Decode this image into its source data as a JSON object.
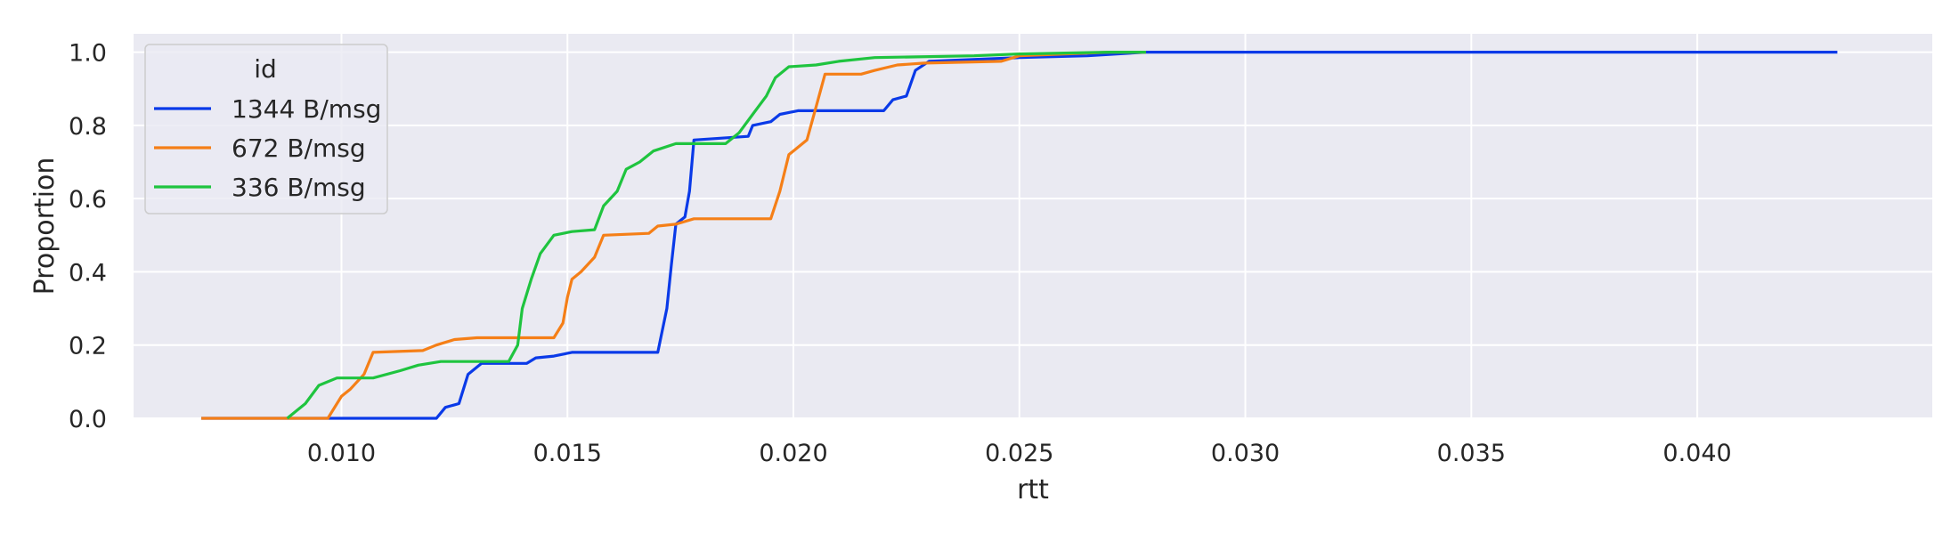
{
  "chart_data": {
    "type": "line",
    "xlabel": "rtt",
    "ylabel": "Proportion",
    "xlim": [
      0.0054,
      0.0452
    ],
    "ylim": [
      0,
      1.05
    ],
    "x_ticks": [
      "0.010",
      "0.015",
      "0.020",
      "0.025",
      "0.030",
      "0.035",
      "0.040"
    ],
    "y_ticks": [
      "0.0",
      "0.2",
      "0.4",
      "0.6",
      "0.8",
      "1.0"
    ],
    "grid": true,
    "legend": {
      "title": "id",
      "position": "top-left"
    },
    "series": [
      {
        "name": "1344 B/msg",
        "color": "#0a3ae8",
        "points": [
          [
            0.0069,
            0.0
          ],
          [
            0.0121,
            0.0
          ],
          [
            0.0123,
            0.03
          ],
          [
            0.0126,
            0.04
          ],
          [
            0.0128,
            0.12
          ],
          [
            0.0131,
            0.15
          ],
          [
            0.0141,
            0.15
          ],
          [
            0.0143,
            0.165
          ],
          [
            0.0147,
            0.17
          ],
          [
            0.0151,
            0.18
          ],
          [
            0.017,
            0.18
          ],
          [
            0.0172,
            0.3
          ],
          [
            0.0173,
            0.42
          ],
          [
            0.0174,
            0.53
          ],
          [
            0.0176,
            0.55
          ],
          [
            0.0177,
            0.62
          ],
          [
            0.0178,
            0.76
          ],
          [
            0.019,
            0.77
          ],
          [
            0.0191,
            0.8
          ],
          [
            0.0195,
            0.81
          ],
          [
            0.0197,
            0.83
          ],
          [
            0.0201,
            0.84
          ],
          [
            0.022,
            0.84
          ],
          [
            0.0222,
            0.87
          ],
          [
            0.0225,
            0.88
          ],
          [
            0.0227,
            0.95
          ],
          [
            0.023,
            0.975
          ],
          [
            0.025,
            0.985
          ],
          [
            0.0265,
            0.99
          ],
          [
            0.0278,
            1.0
          ],
          [
            0.0431,
            1.0
          ]
        ]
      },
      {
        "name": "672 B/msg",
        "color": "#f57f17",
        "points": [
          [
            0.0069,
            0.0
          ],
          [
            0.0097,
            0.0
          ],
          [
            0.01,
            0.06
          ],
          [
            0.0102,
            0.08
          ],
          [
            0.0105,
            0.12
          ],
          [
            0.0107,
            0.18
          ],
          [
            0.0118,
            0.185
          ],
          [
            0.0121,
            0.2
          ],
          [
            0.0125,
            0.215
          ],
          [
            0.013,
            0.22
          ],
          [
            0.0147,
            0.22
          ],
          [
            0.0149,
            0.26
          ],
          [
            0.015,
            0.33
          ],
          [
            0.0151,
            0.38
          ],
          [
            0.0153,
            0.4
          ],
          [
            0.0156,
            0.44
          ],
          [
            0.0158,
            0.5
          ],
          [
            0.0168,
            0.505
          ],
          [
            0.017,
            0.525
          ],
          [
            0.0174,
            0.53
          ],
          [
            0.0178,
            0.545
          ],
          [
            0.0195,
            0.545
          ],
          [
            0.0197,
            0.62
          ],
          [
            0.0199,
            0.72
          ],
          [
            0.0201,
            0.74
          ],
          [
            0.0203,
            0.76
          ],
          [
            0.0205,
            0.85
          ],
          [
            0.0207,
            0.94
          ],
          [
            0.0215,
            0.94
          ],
          [
            0.0218,
            0.95
          ],
          [
            0.0223,
            0.965
          ],
          [
            0.0229,
            0.97
          ],
          [
            0.0246,
            0.975
          ],
          [
            0.025,
            0.99
          ],
          [
            0.027,
            1.0
          ],
          [
            0.0278,
            1.0
          ]
        ]
      },
      {
        "name": "336 B/msg",
        "color": "#1fc43f",
        "points": [
          [
            0.0088,
            0.0
          ],
          [
            0.009,
            0.02
          ],
          [
            0.0092,
            0.04
          ],
          [
            0.0095,
            0.09
          ],
          [
            0.0099,
            0.11
          ],
          [
            0.0107,
            0.11
          ],
          [
            0.0113,
            0.13
          ],
          [
            0.0117,
            0.145
          ],
          [
            0.0122,
            0.155
          ],
          [
            0.0137,
            0.155
          ],
          [
            0.0139,
            0.2
          ],
          [
            0.014,
            0.3
          ],
          [
            0.0142,
            0.38
          ],
          [
            0.0144,
            0.45
          ],
          [
            0.0147,
            0.5
          ],
          [
            0.0151,
            0.51
          ],
          [
            0.0156,
            0.515
          ],
          [
            0.0158,
            0.58
          ],
          [
            0.0161,
            0.62
          ],
          [
            0.0163,
            0.68
          ],
          [
            0.0166,
            0.7
          ],
          [
            0.0169,
            0.73
          ],
          [
            0.0174,
            0.75
          ],
          [
            0.0185,
            0.75
          ],
          [
            0.0188,
            0.78
          ],
          [
            0.0191,
            0.83
          ],
          [
            0.0194,
            0.88
          ],
          [
            0.0196,
            0.93
          ],
          [
            0.0199,
            0.96
          ],
          [
            0.0205,
            0.965
          ],
          [
            0.021,
            0.975
          ],
          [
            0.0218,
            0.985
          ],
          [
            0.024,
            0.99
          ],
          [
            0.025,
            0.995
          ],
          [
            0.027,
            1.0
          ],
          [
            0.0278,
            1.0
          ]
        ]
      }
    ]
  }
}
